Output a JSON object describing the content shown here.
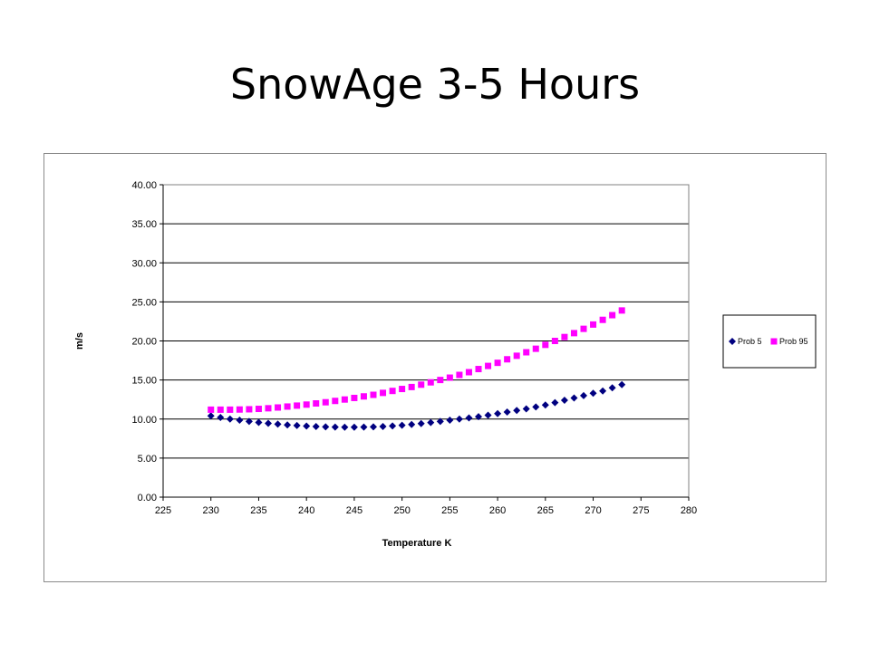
{
  "slide": {
    "title": "SnowAge 3-5 Hours"
  },
  "chart_data": {
    "type": "scatter",
    "title": "",
    "xlabel": "Temperature K",
    "ylabel": "m/s",
    "xlim": [
      225,
      280
    ],
    "ylim": [
      0,
      40
    ],
    "x_ticks": [
      "225",
      "230",
      "235",
      "240",
      "245",
      "250",
      "255",
      "260",
      "265",
      "270",
      "275",
      "280"
    ],
    "y_ticks": [
      "0.00",
      "5.00",
      "10.00",
      "15.00",
      "20.00",
      "25.00",
      "30.00",
      "35.00",
      "40.00"
    ],
    "grid": "horizontal",
    "legend_position": "right",
    "series": [
      {
        "name": "Prob 5",
        "marker": "diamond",
        "color": "#000080",
        "x": [
          230,
          231,
          232,
          233,
          234,
          235,
          236,
          237,
          238,
          239,
          240,
          241,
          242,
          243,
          244,
          245,
          246,
          247,
          248,
          249,
          250,
          251,
          252,
          253,
          254,
          255,
          256,
          257,
          258,
          259,
          260,
          261,
          262,
          263,
          264,
          265,
          266,
          267,
          268,
          269,
          270,
          271,
          272,
          273
        ],
        "y": [
          10.4,
          10.2,
          10.0,
          9.85,
          9.7,
          9.57,
          9.45,
          9.35,
          9.25,
          9.17,
          9.1,
          9.05,
          9.0,
          8.97,
          8.95,
          8.95,
          8.97,
          9.0,
          9.05,
          9.12,
          9.2,
          9.3,
          9.42,
          9.55,
          9.7,
          9.85,
          10.0,
          10.15,
          10.3,
          10.5,
          10.7,
          10.9,
          11.1,
          11.3,
          11.55,
          11.8,
          12.1,
          12.4,
          12.7,
          13.0,
          13.3,
          13.6,
          14.0,
          14.4
        ]
      },
      {
        "name": "Prob 95",
        "marker": "square",
        "color": "#FF00FF",
        "x": [
          230,
          231,
          232,
          233,
          234,
          235,
          236,
          237,
          238,
          239,
          240,
          241,
          242,
          243,
          244,
          245,
          246,
          247,
          248,
          249,
          250,
          251,
          252,
          253,
          254,
          255,
          256,
          257,
          258,
          259,
          260,
          261,
          262,
          263,
          264,
          265,
          266,
          267,
          268,
          269,
          270,
          271,
          272,
          273
        ],
        "y": [
          11.2,
          11.2,
          11.2,
          11.22,
          11.25,
          11.3,
          11.38,
          11.48,
          11.6,
          11.72,
          11.85,
          12.0,
          12.15,
          12.32,
          12.5,
          12.7,
          12.9,
          13.1,
          13.35,
          13.6,
          13.85,
          14.1,
          14.4,
          14.7,
          15.0,
          15.3,
          15.65,
          16.0,
          16.4,
          16.8,
          17.2,
          17.65,
          18.1,
          18.55,
          19.0,
          19.5,
          20.0,
          20.5,
          21.0,
          21.55,
          22.1,
          22.7,
          23.3,
          23.9
        ]
      }
    ]
  }
}
